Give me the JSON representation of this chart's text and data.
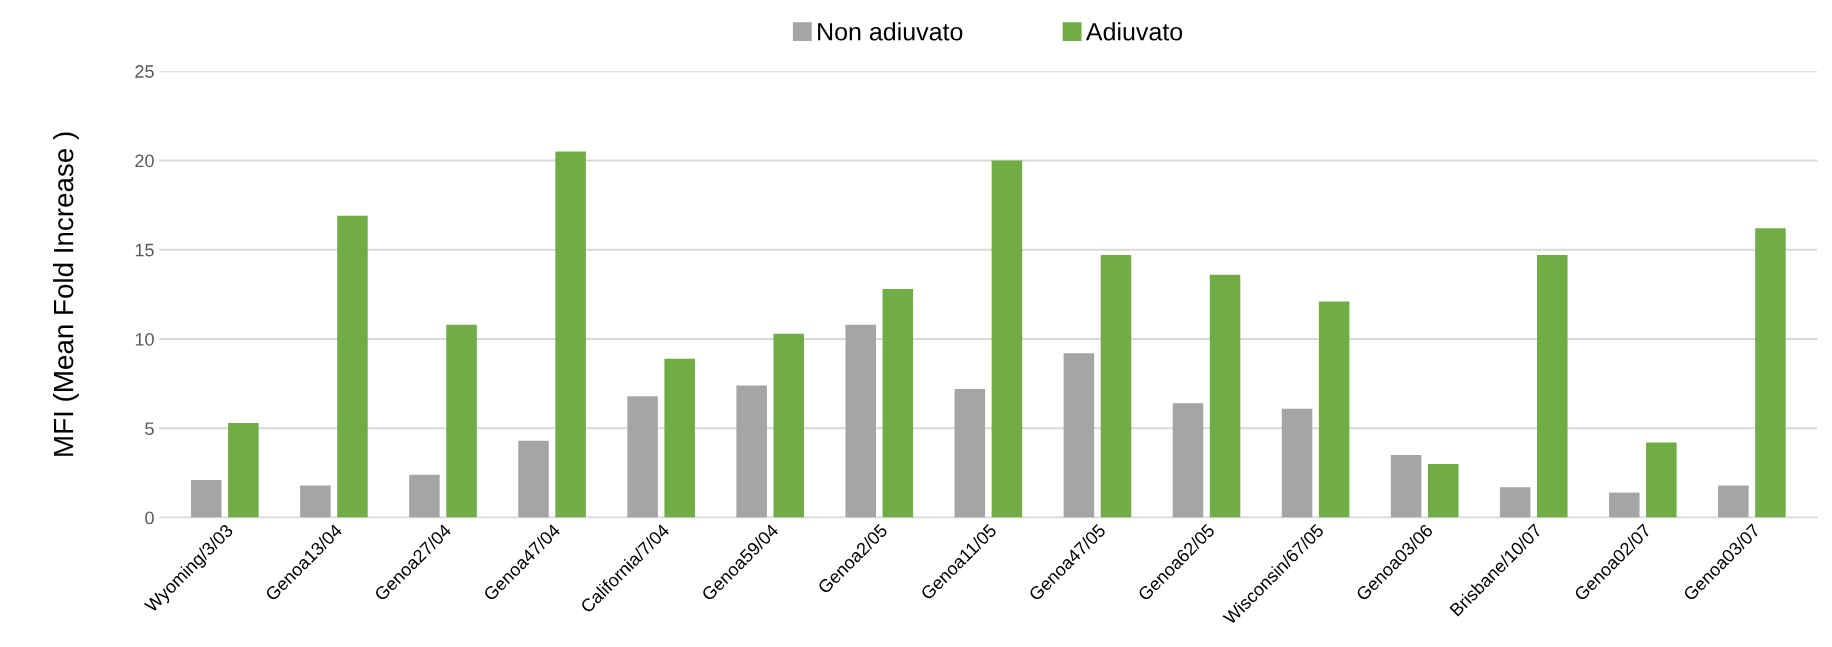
{
  "chart_data": {
    "type": "bar",
    "ylabel": "MFI (Mean Fold Increase )",
    "categories": [
      "Wyoming/3/03",
      "Genoa13/04",
      "Genoa27/04",
      "Genoa47/04",
      "California/7/04",
      "Genoa59/04",
      "Genoa2/05",
      "Genoa11/05",
      "Genoa47/05",
      "Genoa62/05",
      "Wisconsin/67/05",
      "Genoa03/06",
      "Brisbane/10/07",
      "Genoa02/07",
      "Genoa03/07"
    ],
    "series": [
      {
        "name": "Non adiuvato",
        "color": "#a5a5a5",
        "values": [
          2.1,
          1.8,
          2.4,
          4.3,
          6.8,
          7.4,
          10.8,
          7.2,
          9.2,
          6.4,
          6.1,
          3.5,
          1.7,
          1.4,
          1.8
        ]
      },
      {
        "name": "Adiuvato",
        "color": "#70ad47",
        "values": [
          5.3,
          16.9,
          10.8,
          20.5,
          8.9,
          10.3,
          12.8,
          20.0,
          14.7,
          13.6,
          12.1,
          3.0,
          14.7,
          4.2,
          16.2
        ]
      }
    ],
    "ylim": [
      0,
      25
    ],
    "yticks": [
      0,
      5,
      10,
      15,
      20,
      25
    ],
    "grid": "y",
    "legend": "top"
  }
}
